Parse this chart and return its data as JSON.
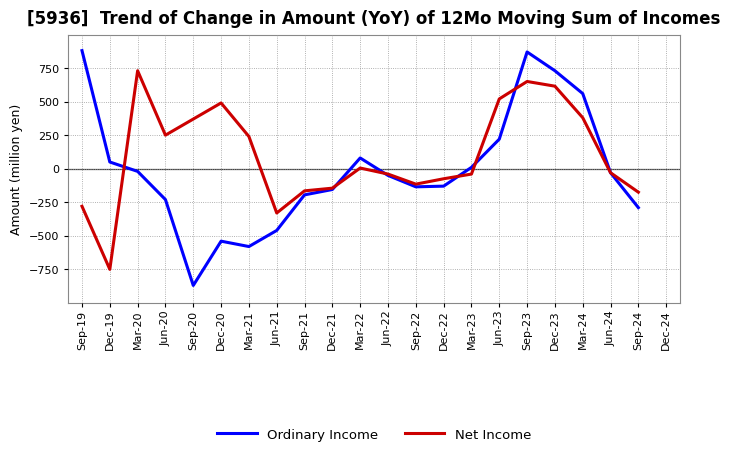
{
  "title": "[5936]  Trend of Change in Amount (YoY) of 12Mo Moving Sum of Incomes",
  "ylabel": "Amount (million yen)",
  "x_labels": [
    "Sep-19",
    "Dec-19",
    "Mar-20",
    "Jun-20",
    "Sep-20",
    "Dec-20",
    "Mar-21",
    "Jun-21",
    "Sep-21",
    "Dec-21",
    "Mar-22",
    "Jun-22",
    "Sep-22",
    "Dec-22",
    "Mar-23",
    "Jun-23",
    "Sep-23",
    "Dec-23",
    "Mar-24",
    "Jun-24",
    "Sep-24",
    "Dec-24"
  ],
  "ordinary_income": [
    880,
    50,
    -20,
    -230,
    -870,
    -540,
    -580,
    -460,
    -195,
    -155,
    80,
    -50,
    -135,
    -130,
    10,
    220,
    870,
    730,
    560,
    -30,
    -290,
    null
  ],
  "net_income": [
    -280,
    -750,
    730,
    250,
    null,
    490,
    240,
    -330,
    -165,
    -145,
    5,
    -40,
    -115,
    -75,
    -40,
    520,
    650,
    615,
    380,
    -30,
    -175,
    null
  ],
  "ordinary_color": "#0000FF",
  "net_color": "#CC0000",
  "ylim": [
    -1000,
    1000
  ],
  "yticks": [
    -750,
    -500,
    -250,
    0,
    250,
    500,
    750
  ],
  "background_color": "#FFFFFF",
  "grid_color": "#999999",
  "legend_labels": [
    "Ordinary Income",
    "Net Income"
  ],
  "title_fontsize": 12,
  "axis_fontsize": 9,
  "tick_fontsize": 8,
  "line_width": 2.2
}
